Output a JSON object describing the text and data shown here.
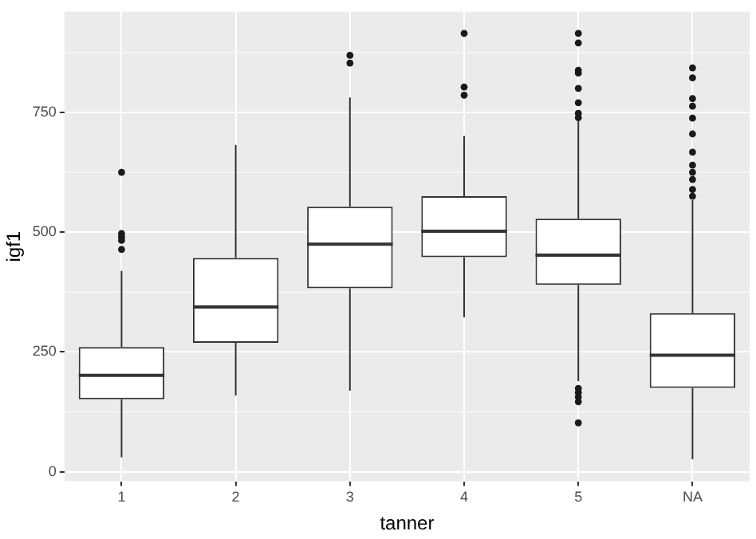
{
  "chart_data": {
    "type": "box",
    "xlabel": "tanner",
    "ylabel": "igf1",
    "categories": [
      "1",
      "2",
      "3",
      "4",
      "5",
      "NA"
    ],
    "boxes": [
      {
        "low": 30,
        "q1": 151,
        "median": 201,
        "q3": 260,
        "high": 419,
        "outliers": [
          625,
          497,
          490,
          483,
          464
        ]
      },
      {
        "low": 159,
        "q1": 269,
        "median": 344,
        "q3": 446,
        "high": 682
      },
      {
        "low": 169,
        "q1": 383,
        "median": 475,
        "q3": 553,
        "high": 781,
        "outliers": [
          869,
          853
        ]
      },
      {
        "low": 322,
        "q1": 448,
        "median": 502,
        "q3": 575,
        "high": 701,
        "outliers": [
          915,
          803,
          786
        ]
      },
      {
        "low": 189,
        "q1": 390,
        "median": 452,
        "q3": 528,
        "high": 734,
        "outliers": [
          915,
          895,
          838,
          832,
          800,
          770,
          748,
          739,
          174,
          165,
          156,
          146,
          102
        ]
      },
      {
        "low": 26,
        "q1": 175,
        "median": 243,
        "q3": 331,
        "high": 567,
        "outliers": [
          843,
          822,
          779,
          763,
          738,
          705,
          667,
          640,
          625,
          610,
          589,
          575
        ]
      }
    ],
    "ylim": [
      -20,
      960
    ],
    "yticks": [
      0,
      250,
      500,
      750
    ],
    "grid": true
  }
}
